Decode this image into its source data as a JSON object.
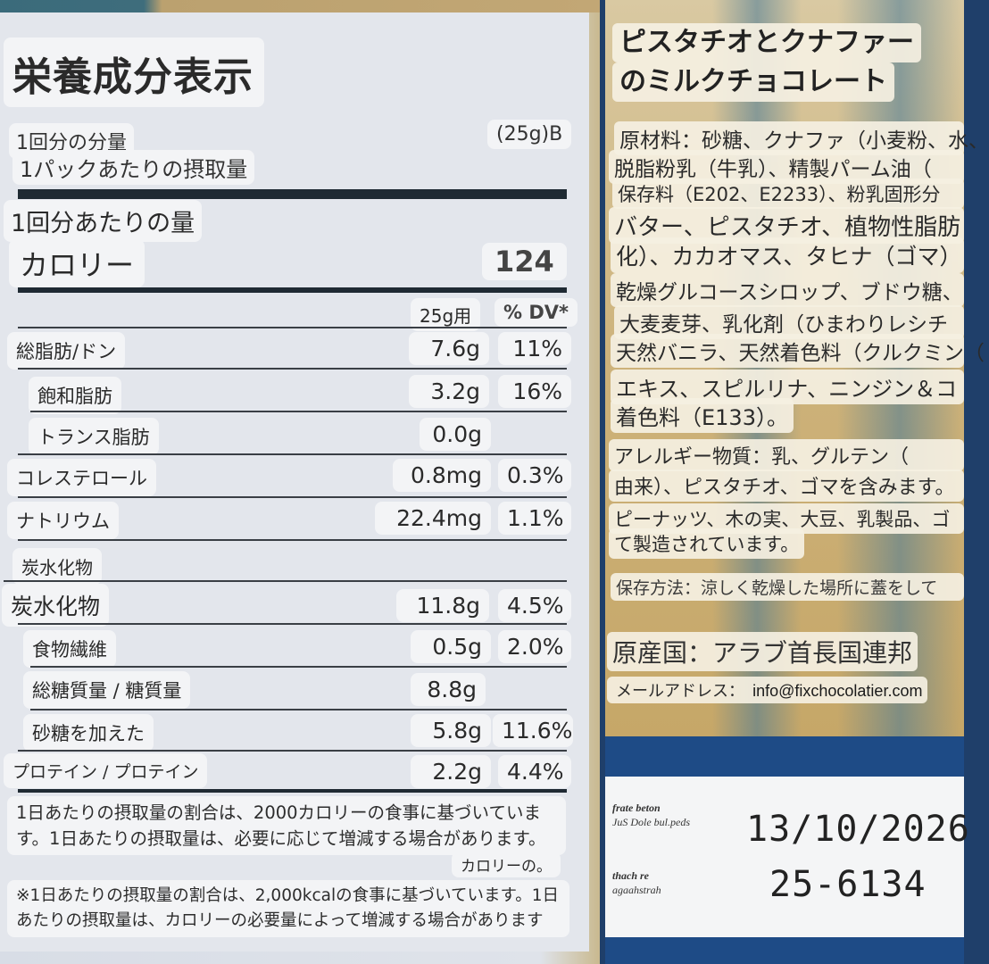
{
  "nutrition": {
    "title": "栄養成分表示",
    "serving_label": "1回分の分量",
    "serving_value": "(25g)B",
    "pack_label": "1パックあたりの摂取量",
    "per_serving_heading": "1回分あたりの量",
    "calories_label": "カロリー",
    "calories_value": "124",
    "col_amount": "25g用",
    "col_dv": "% DV*",
    "rows": [
      {
        "label": "総脂肪/ドン",
        "amount": "7.6g",
        "dv": "11%"
      },
      {
        "label": "飽和脂肪",
        "amount": "3.2g",
        "dv": "16%"
      },
      {
        "label": "トランス脂肪",
        "amount": "0.0g",
        "dv": ""
      },
      {
        "label": "コレステロール",
        "amount": "0.8mg",
        "dv": "0.3%"
      },
      {
        "label": "ナトリウム",
        "amount": "22.4mg",
        "dv": "1.1%"
      },
      {
        "label": "炭水化物",
        "amount": "",
        "dv": ""
      },
      {
        "label": "炭水化物",
        "amount": "11.8g",
        "dv": "4.5%"
      },
      {
        "label": "食物繊維",
        "amount": "0.5g",
        "dv": "2.0%"
      },
      {
        "label": "総糖質量 / 糖質量",
        "amount": "8.8g",
        "dv": ""
      },
      {
        "label": "砂糖を加えた",
        "amount": "5.8g",
        "dv": "11.6%"
      },
      {
        "label": "プロテイン / プロテイン",
        "amount": "2.2g",
        "dv": "4.4%"
      }
    ],
    "footnote1": "1日あたりの摂取量の割合は、2000カロリーの食事に基づいています。1日あたりの摂取量は、必要に応じて増減する場合があります。",
    "footnote1_tail": "カロリーの。",
    "footnote2": "※1日あたりの摂取量の割合は、2,000kcalの食事に基づいています。1日あたりの摂取量は、カロリーの必要量によって増減する場合があります"
  },
  "product": {
    "title_line1": "ピスタチオとクナファー",
    "title_line2": "のミルクチョコレート",
    "ingredients": [
      "原材料：砂糖、クナファ（小麦粉、水、",
      "脱脂粉乳（牛乳）、精製パーム油（",
      "保存料（E202、E2233）、粉乳固形分",
      "バター、ピスタチオ、植物性脂肪",
      "化）、カカオマス、タヒナ（ゴマ）",
      "乾燥グルコースシロップ、ブドウ糖、",
      "大麦麦芽、乳化剤（ひまわりレシチ",
      "天然バニラ、天然着色料（クルクミン（",
      "エキス、スピルリナ、ニンジン＆コ",
      "着色料（E133）。"
    ],
    "allergens_line1": "アレルギー物質：乳、グルテン（",
    "allergens_line2": "由来）、ピスタチオ、ゴマを含みます。",
    "facility_line1": "ピーナッツ、木の実、大豆、乳製品、ゴ",
    "facility_line2": "て製造されています。",
    "storage": "保存方法：涼しく乾燥した場所に蓋をして",
    "origin": "原産国：アラブ首長国連邦",
    "email_label": "メールアドレス：",
    "email": "info@fixchocolatier.com"
  },
  "stamp": {
    "label1_line1": "frate beton",
    "label1_line2": "JuS Dole bul.peds",
    "label2_line1": "thach re",
    "label2_line2": "agaahstrah",
    "date": "13/10/2026",
    "lot": "25-6134"
  },
  "colors": {
    "panel_bg": "#e3e6ec",
    "chip_bg": "#f3f4f6",
    "rule": "#1f2a33",
    "right_bg": "#cdb27a",
    "stamp_blue": "#1e4b86"
  }
}
